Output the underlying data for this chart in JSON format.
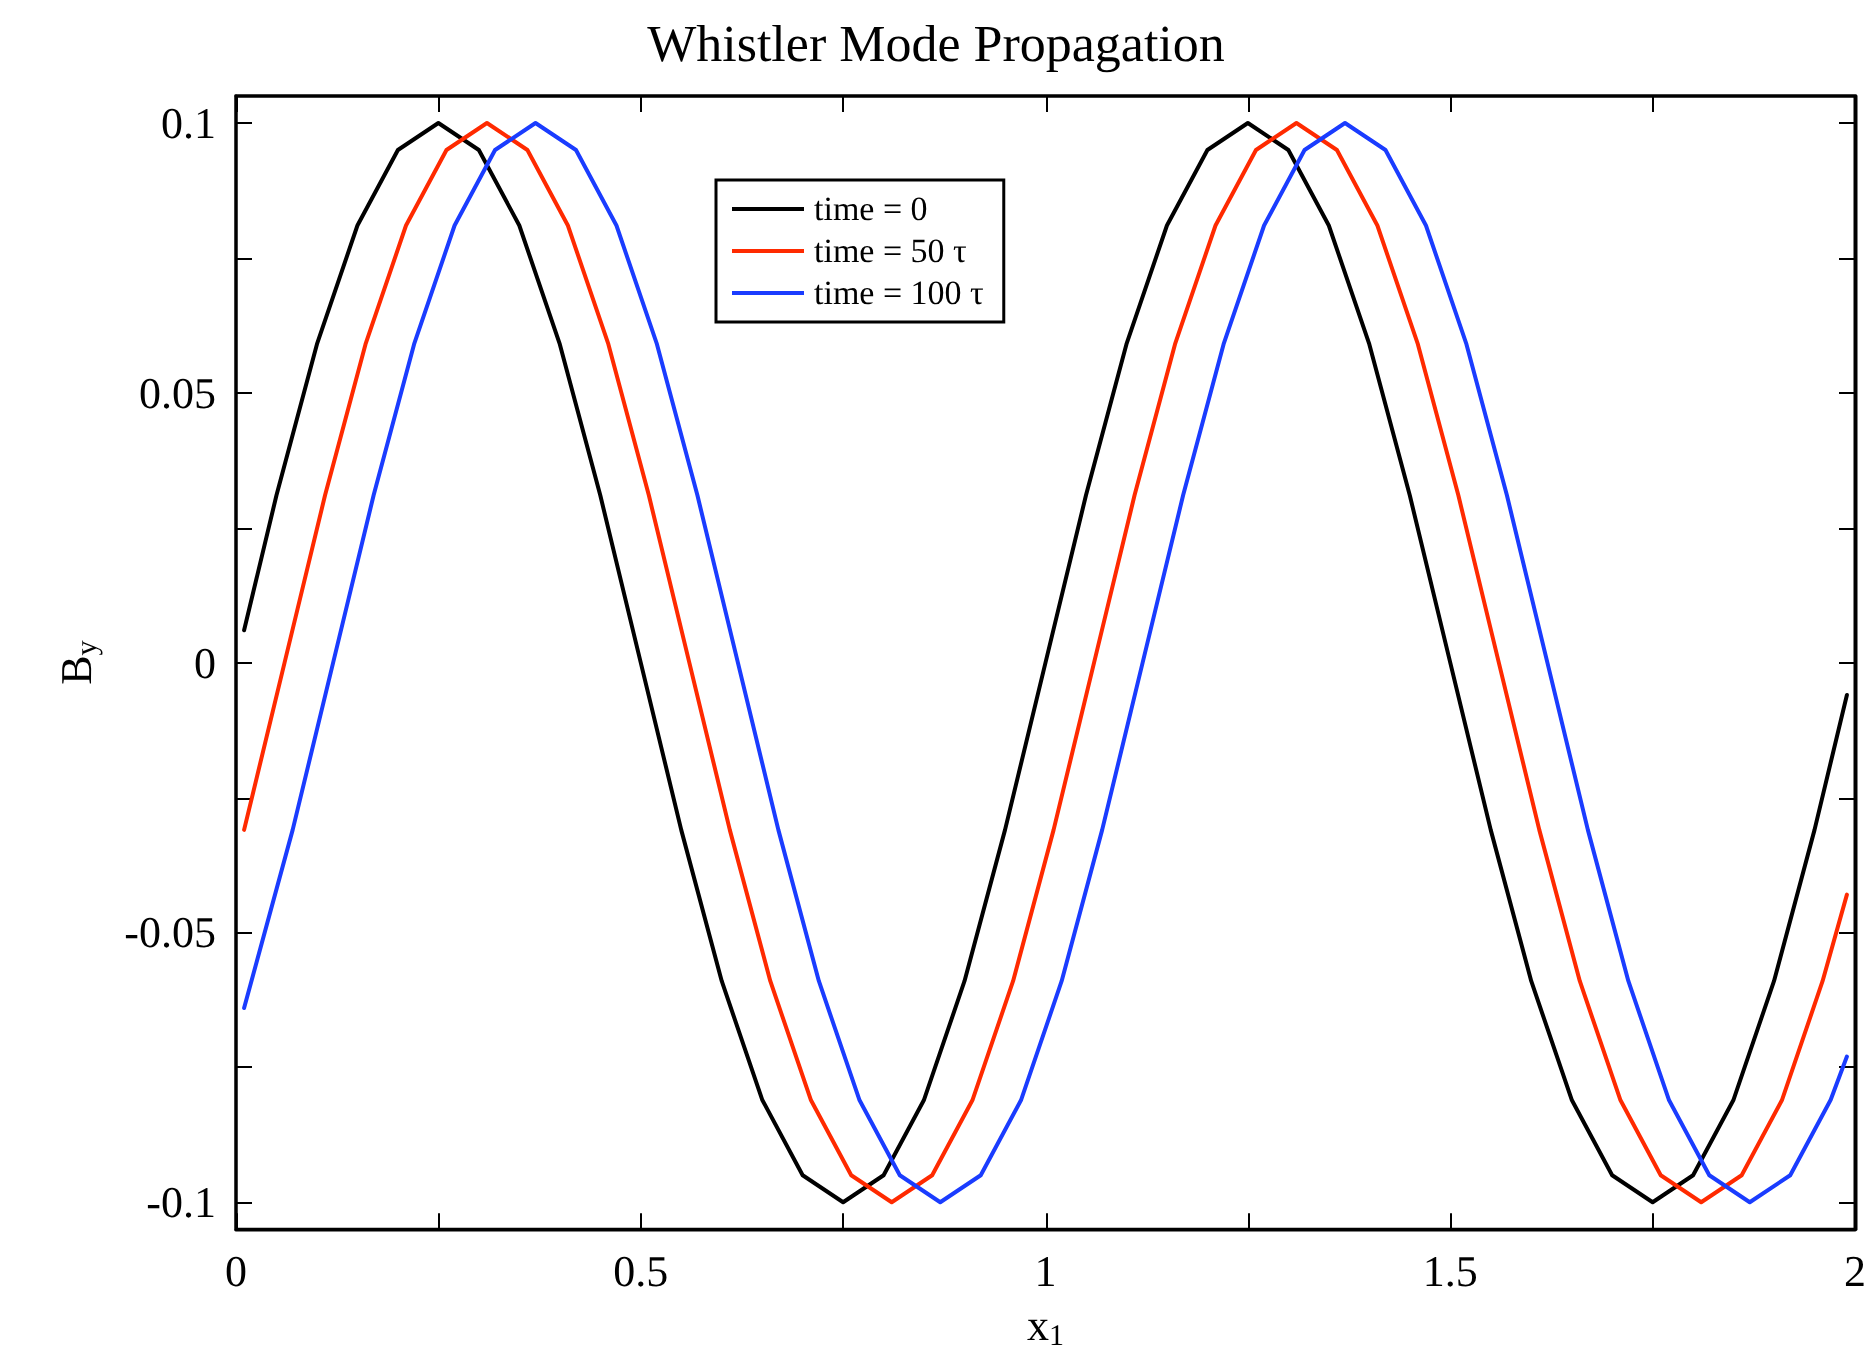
{
  "chart_data": {
    "type": "line",
    "title": "Whistler Mode Propagation",
    "xlabel": "x$_{1}$",
    "ylabel": "B$_{y}$",
    "xlim": [
      0,
      2
    ],
    "ylim": [
      -0.105,
      0.105
    ],
    "xticks": [
      0,
      {
        "value": 0.25,
        "label": null
      },
      0.5,
      {
        "value": 0.75,
        "label": null
      },
      1,
      {
        "value": 1.25,
        "label": null
      },
      1.5,
      {
        "value": 1.75,
        "label": null
      },
      2
    ],
    "yticks": [
      -0.1,
      {
        "value": -0.075,
        "label": null
      },
      -0.05,
      {
        "value": -0.025,
        "label": null
      },
      0,
      {
        "value": 0.025,
        "label": null
      },
      0.05,
      {
        "value": 0.075,
        "label": null
      },
      0.1
    ],
    "grid": false,
    "legend": "top",
    "marker": "none",
    "line_style": "solid",
    "series": [
      {
        "name": "time = 0",
        "color": "#000000",
        "x": [
          0.01,
          0.05,
          0.1,
          0.15,
          0.2,
          0.25,
          0.3,
          0.35,
          0.4,
          0.45,
          0.5,
          0.55,
          0.6,
          0.65,
          0.7,
          0.75,
          0.8,
          0.85,
          0.9,
          0.95,
          1,
          1.05,
          1.1,
          1.15,
          1.2,
          1.25,
          1.3,
          1.35,
          1.4,
          1.45,
          1.5,
          1.55,
          1.6,
          1.65,
          1.7,
          1.75,
          1.8,
          1.85,
          1.9,
          1.95,
          1.99
        ],
        "values": [
          0.006,
          0.031,
          0.059,
          0.081,
          0.095,
          0.1,
          0.095,
          0.081,
          0.059,
          0.031,
          0,
          -0.031,
          -0.059,
          -0.081,
          -0.095,
          -0.1,
          -0.095,
          -0.081,
          -0.059,
          -0.031,
          0,
          0.031,
          0.059,
          0.081,
          0.095,
          0.1,
          0.095,
          0.081,
          0.059,
          0.031,
          0,
          -0.031,
          -0.059,
          -0.081,
          -0.095,
          -0.1,
          -0.095,
          -0.081,
          -0.059,
          -0.031,
          -0.006
        ]
      },
      {
        "name": "time = 50 τ",
        "color": "#ff2a00",
        "x": [
          0.01,
          0.06,
          0.11,
          0.16,
          0.21,
          0.26,
          0.31,
          0.36,
          0.41,
          0.46,
          0.51,
          0.56,
          0.61,
          0.66,
          0.71,
          0.76,
          0.81,
          0.86,
          0.91,
          0.96,
          1.01,
          1.06,
          1.11,
          1.16,
          1.21,
          1.26,
          1.31,
          1.36,
          1.41,
          1.46,
          1.51,
          1.56,
          1.61,
          1.66,
          1.71,
          1.76,
          1.81,
          1.86,
          1.91,
          1.96,
          1.99
        ],
        "values": [
          -0.031,
          0,
          0.031,
          0.059,
          0.081,
          0.095,
          0.1,
          0.095,
          0.081,
          0.059,
          0.031,
          0,
          -0.031,
          -0.059,
          -0.081,
          -0.095,
          -0.1,
          -0.095,
          -0.081,
          -0.059,
          -0.031,
          0,
          0.031,
          0.059,
          0.081,
          0.095,
          0.1,
          0.095,
          0.081,
          0.059,
          0.031,
          0,
          -0.031,
          -0.059,
          -0.081,
          -0.095,
          -0.1,
          -0.095,
          -0.081,
          -0.059,
          -0.043
        ]
      },
      {
        "name": "time = 100 τ",
        "color": "#1a3cff",
        "x": [
          0.01,
          0.07,
          0.12,
          0.17,
          0.22,
          0.27,
          0.32,
          0.37,
          0.42,
          0.47,
          0.52,
          0.57,
          0.62,
          0.67,
          0.72,
          0.77,
          0.82,
          0.87,
          0.92,
          0.97,
          1.02,
          1.07,
          1.12,
          1.17,
          1.22,
          1.27,
          1.32,
          1.37,
          1.42,
          1.47,
          1.52,
          1.57,
          1.62,
          1.67,
          1.72,
          1.77,
          1.82,
          1.87,
          1.92,
          1.97,
          1.99
        ],
        "values": [
          -0.064,
          -0.031,
          0,
          0.031,
          0.059,
          0.081,
          0.095,
          0.1,
          0.095,
          0.081,
          0.059,
          0.031,
          0,
          -0.031,
          -0.059,
          -0.081,
          -0.095,
          -0.1,
          -0.095,
          -0.081,
          -0.059,
          -0.031,
          0,
          0.031,
          0.059,
          0.081,
          0.095,
          0.1,
          0.095,
          0.081,
          0.059,
          0.031,
          0,
          -0.031,
          -0.059,
          -0.081,
          -0.095,
          -0.1,
          -0.095,
          -0.081,
          -0.073
        ]
      }
    ]
  }
}
